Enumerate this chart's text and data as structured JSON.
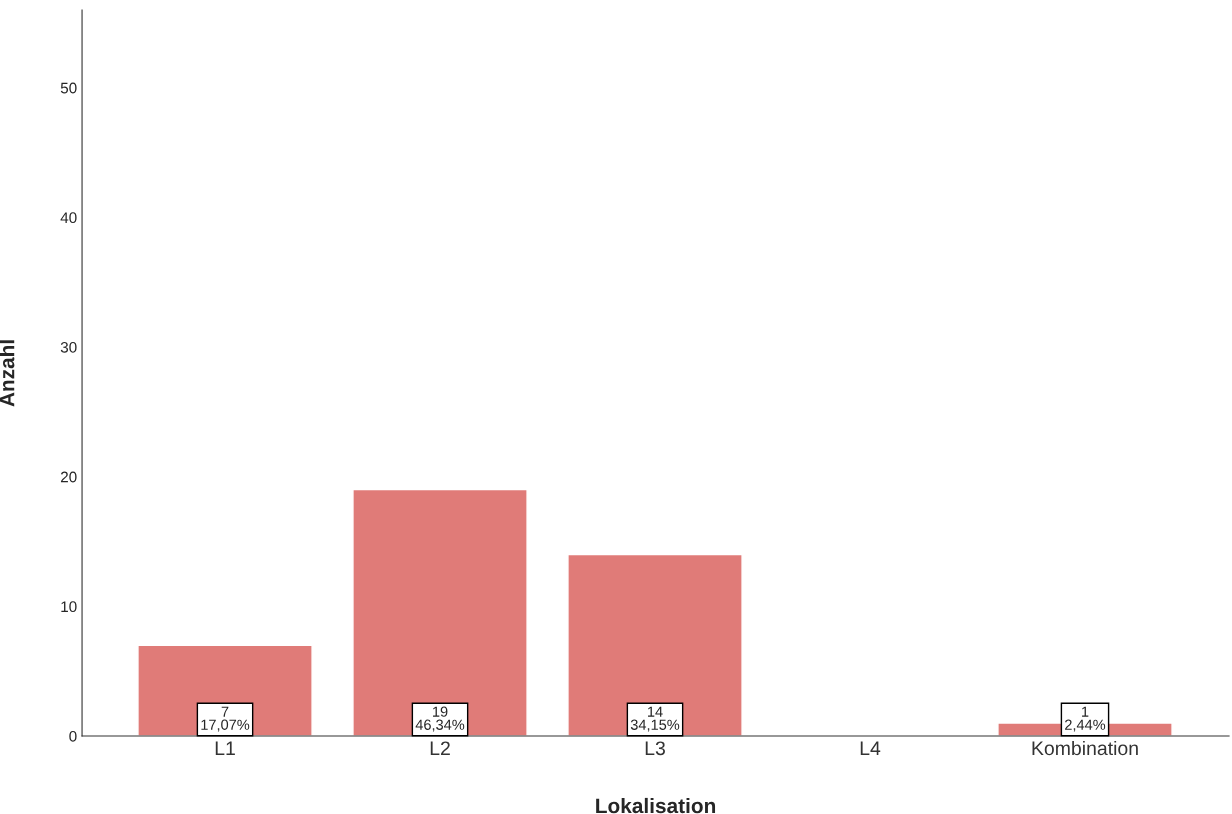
{
  "chart_data": {
    "type": "bar",
    "xlabel": "Lokalisation",
    "ylabel": "Anzahl",
    "categories": [
      "L1",
      "L2",
      "L3",
      "L4",
      "Kombination"
    ],
    "values": [
      7,
      19,
      14,
      null,
      1
    ],
    "value_labels": [
      "7\n17,07%",
      "19\n46,34%",
      "14\n34,15%",
      null,
      "1\n2,44%"
    ],
    "color": "#e07b78",
    "ylim": [
      0,
      56
    ],
    "yticks": [
      0,
      10,
      20,
      30,
      40,
      50
    ],
    "grid": false
  }
}
